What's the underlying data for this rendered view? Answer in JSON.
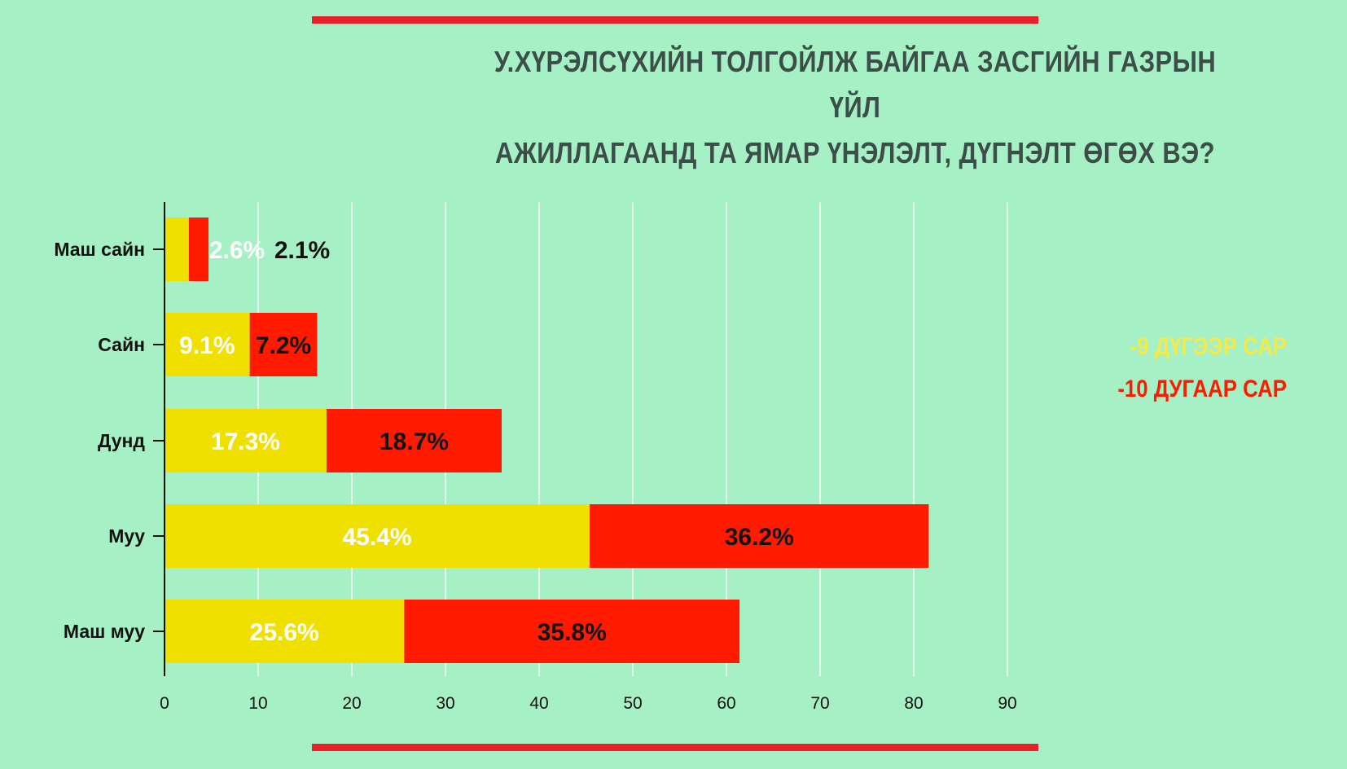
{
  "title_lines": [
    "У.ХҮРЭЛСҮХИЙН ТОЛГОЙЛЖ БАЙГАА ЗАСГИЙН ГАЗРЫН ҮЙЛ",
    "АЖИЛЛАГААНД ТА ЯМАР ҮНЭЛЭЛТ, ДҮГНЭЛТ ӨГӨХ ВЭ?"
  ],
  "legend": [
    {
      "label": "-9 ДҮГЭЭР САР",
      "color": "#f5ea4a"
    },
    {
      "label": "-10 ДУГААР САР",
      "color": "#ff1a00"
    }
  ],
  "colors": {
    "background": "#a6f0c6",
    "series1": "#efe000",
    "series2": "#ff1a00",
    "accent": "#e8202a",
    "label_light": "#ffffff",
    "label_dark": "#111111"
  },
  "chart_data": {
    "type": "bar",
    "orientation": "horizontal",
    "stacked": true,
    "categories": [
      "Маш сайн",
      "Сайн",
      "Дунд",
      "Муу",
      "Маш муу"
    ],
    "series": [
      {
        "values": [
          2.6,
          9.1,
          17.3,
          45.4,
          25.6
        ],
        "labels": [
          "2.6%",
          "9.1%",
          "17.3%",
          "45.4%",
          "25.6%"
        ]
      },
      {
        "values": [
          2.1,
          7.2,
          18.7,
          36.2,
          35.8
        ],
        "labels": [
          "2.1%",
          "7.2%",
          "18.7%",
          "36.2%",
          "35.8%"
        ]
      }
    ],
    "xlim": [
      0,
      90
    ],
    "xticks": [
      "0",
      "10",
      "20",
      "30",
      "40",
      "50",
      "60",
      "70",
      "80",
      "90"
    ],
    "grid": true
  }
}
